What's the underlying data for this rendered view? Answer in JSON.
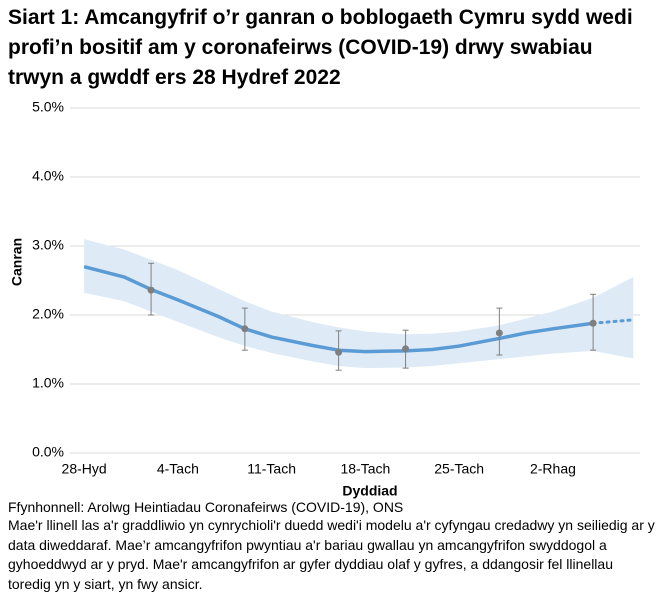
{
  "chart_data": {
    "type": "line",
    "title": "Siart 1: Amcangyfrif o’r ganran o boblogaeth Cymru sydd wedi profi’n bositif am y coronafeirws (COVID-19) drwy swabiau trwyn a gwddf ers 28 Hydref 2022",
    "y_label": "Canran",
    "x_label": "Dyddiad",
    "source": "Ffynhonnell: Arolwg Heintiadau Coronafeirws (COVID-19), ONS",
    "note": "Mae'r llinell las a'r graddliwio yn cynrychioli'r duedd wedi'i modelu a'r cyfyngau credadwy yn seiliedig ar y data diweddaraf. Mae’r amcangyfrifon pwyntiau a'r bariau gwallau yn amcangyfrifon swyddogol a gyhoeddwyd ar y pryd. Mae'r amcangyfrifon ar gyfer dyddiau olaf y gyfres, a ddangosir fel llinellau toredig yn y siart, yn fwy ansicr.",
    "x": [
      0,
      3,
      5,
      7,
      10,
      12,
      14,
      17,
      19,
      21,
      24,
      26,
      28,
      31,
      33,
      35,
      38,
      41
    ],
    "series": [
      {
        "color": "#5b9bd5",
        "line_style": "solid",
        "values": [
          2.7,
          2.55,
          2.37,
          2.22,
          1.98,
          1.8,
          1.68,
          1.56,
          1.49,
          1.47,
          1.48,
          1.5,
          1.55,
          1.66,
          1.74,
          1.8,
          1.88,
          null
        ]
      },
      {
        "color": "#5b9bd5",
        "line_style": "dotted",
        "values": [
          null,
          null,
          null,
          null,
          null,
          null,
          null,
          null,
          null,
          null,
          null,
          null,
          null,
          null,
          null,
          null,
          1.88,
          1.93
        ]
      }
    ],
    "band": {
      "color": "#deebf7",
      "upper": [
        3.1,
        2.95,
        2.8,
        2.65,
        2.38,
        2.2,
        2.05,
        1.9,
        1.82,
        1.76,
        1.72,
        1.73,
        1.76,
        1.85,
        1.95,
        2.05,
        2.25,
        2.55
      ],
      "lower": [
        2.32,
        2.2,
        2.05,
        1.9,
        1.68,
        1.55,
        1.45,
        1.33,
        1.26,
        1.23,
        1.24,
        1.26,
        1.3,
        1.36,
        1.4,
        1.44,
        1.48,
        1.37
      ]
    },
    "estimates": {
      "color": "#7f7f7f",
      "x": [
        5,
        12,
        19,
        24,
        31,
        38
      ],
      "values": [
        2.36,
        1.8,
        1.46,
        1.51,
        1.74,
        1.88
      ],
      "lower": [
        2.0,
        1.49,
        1.2,
        1.23,
        1.42,
        1.49
      ],
      "upper": [
        2.75,
        2.1,
        1.77,
        1.78,
        2.1,
        2.3
      ]
    },
    "xlim": [
      -1.8,
      41.5
    ],
    "xticks": [
      {
        "value": 0,
        "label": "28-Hyd"
      },
      {
        "value": 7,
        "label": "4-Tach"
      },
      {
        "value": 14,
        "label": "11-Tach"
      },
      {
        "value": 21,
        "label": "18-Tach"
      },
      {
        "value": 28,
        "label": "25-Tach"
      },
      {
        "value": 35,
        "label": "2-Rhag"
      }
    ],
    "ylim": [
      0,
      5
    ],
    "yticks": [
      {
        "value": 0,
        "label": "0.0%"
      },
      {
        "value": 1,
        "label": "1.0%"
      },
      {
        "value": 2,
        "label": "2.0%"
      },
      {
        "value": 3,
        "label": "3.0%"
      },
      {
        "value": 4,
        "label": "4.0%"
      },
      {
        "value": 5,
        "label": "5.0%"
      }
    ],
    "grid": true
  }
}
